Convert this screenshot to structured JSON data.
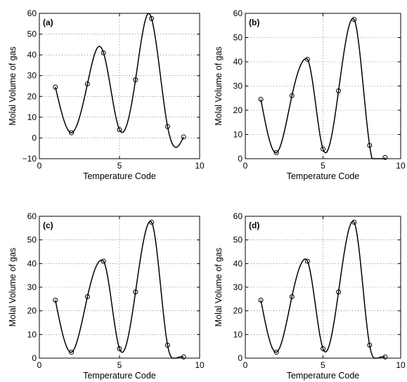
{
  "chart_data": [
    {
      "type": "line",
      "panel_label": "(a)",
      "xlabel": "Temperature Code",
      "ylabel": "Molal Volume of gas",
      "xlim": [
        0,
        10
      ],
      "ylim": [
        -10,
        60
      ],
      "xticks": [
        "0",
        "5",
        "10"
      ],
      "yticks": [
        "-10",
        "0",
        "10",
        "20",
        "30",
        "40",
        "50",
        "60"
      ],
      "grid": true,
      "points": {
        "x": [
          1,
          2,
          3,
          4,
          5,
          6,
          7,
          8,
          9
        ],
        "y": [
          24.5,
          2.5,
          26,
          41,
          4,
          28,
          57.5,
          5.5,
          0.5
        ]
      },
      "curve": {
        "x": [
          1,
          2,
          3,
          3.7,
          4,
          5,
          6,
          6.9,
          7,
          8,
          8.55,
          9
        ],
        "y": [
          24.5,
          2.5,
          26,
          44,
          41,
          4,
          28,
          59.5,
          57.5,
          5.5,
          -4.5,
          0.5
        ]
      }
    },
    {
      "type": "line",
      "panel_label": "(b)",
      "xlabel": "Temperature Code",
      "ylabel": "Molal Volume of gas",
      "xlim": [
        0,
        10
      ],
      "ylim": [
        0,
        60
      ],
      "xticks": [
        "0",
        "5",
        "10"
      ],
      "yticks": [
        "0",
        "10",
        "20",
        "30",
        "40",
        "50",
        "60"
      ],
      "grid": true,
      "points": {
        "x": [
          1,
          2,
          3,
          4,
          5,
          6,
          7,
          8,
          9
        ],
        "y": [
          24.5,
          2.5,
          26,
          41,
          4,
          28,
          57.5,
          5.5,
          0.5
        ]
      },
      "curve": {
        "x": [
          1,
          2,
          3,
          3.9,
          4,
          5,
          6,
          6.95,
          7,
          8,
          9
        ],
        "y": [
          24.5,
          2.5,
          26,
          41.3,
          41,
          4,
          28,
          57.8,
          57.5,
          5.5,
          0.5
        ]
      }
    },
    {
      "type": "line",
      "panel_label": "(c)",
      "xlabel": "Temperature Code",
      "ylabel": "Molal Volume of gas",
      "xlim": [
        0,
        10
      ],
      "ylim": [
        0,
        60
      ],
      "xticks": [
        "0",
        "5",
        "10"
      ],
      "yticks": [
        "0",
        "10",
        "20",
        "30",
        "40",
        "50",
        "60"
      ],
      "grid": true,
      "points": {
        "x": [
          1,
          2,
          3,
          4,
          5,
          6,
          7,
          8,
          9
        ],
        "y": [
          24.5,
          2.5,
          26,
          41,
          4,
          28,
          57.5,
          5.5,
          0.5
        ]
      },
      "curve": {
        "x": [
          1,
          2,
          3,
          3.95,
          4,
          5,
          6,
          6.95,
          7,
          8,
          8.6,
          9
        ],
        "y": [
          24.5,
          2.5,
          26,
          41.3,
          41,
          4,
          28,
          57.8,
          57.5,
          5.5,
          0.2,
          0.5
        ]
      }
    },
    {
      "type": "line",
      "panel_label": "(d)",
      "xlabel": "Temperature Code",
      "ylabel": "Molal Volume of gas",
      "xlim": [
        0,
        10
      ],
      "ylim": [
        0,
        60
      ],
      "xticks": [
        "0",
        "5",
        "10"
      ],
      "yticks": [
        "0",
        "10",
        "20",
        "30",
        "40",
        "50",
        "60"
      ],
      "grid": true,
      "points": {
        "x": [
          1,
          2,
          3,
          4,
          5,
          6,
          7,
          8,
          9
        ],
        "y": [
          24.5,
          2.5,
          26,
          41,
          4,
          28,
          57.5,
          5.5,
          0.5
        ]
      },
      "curve": {
        "x": [
          1,
          2,
          3,
          3.8,
          4,
          5,
          6,
          6.95,
          7,
          8,
          8.6,
          9
        ],
        "y": [
          24.5,
          2.5,
          26,
          41.8,
          41,
          4,
          28,
          57.8,
          57.5,
          5.5,
          0.2,
          0.5
        ]
      }
    }
  ]
}
